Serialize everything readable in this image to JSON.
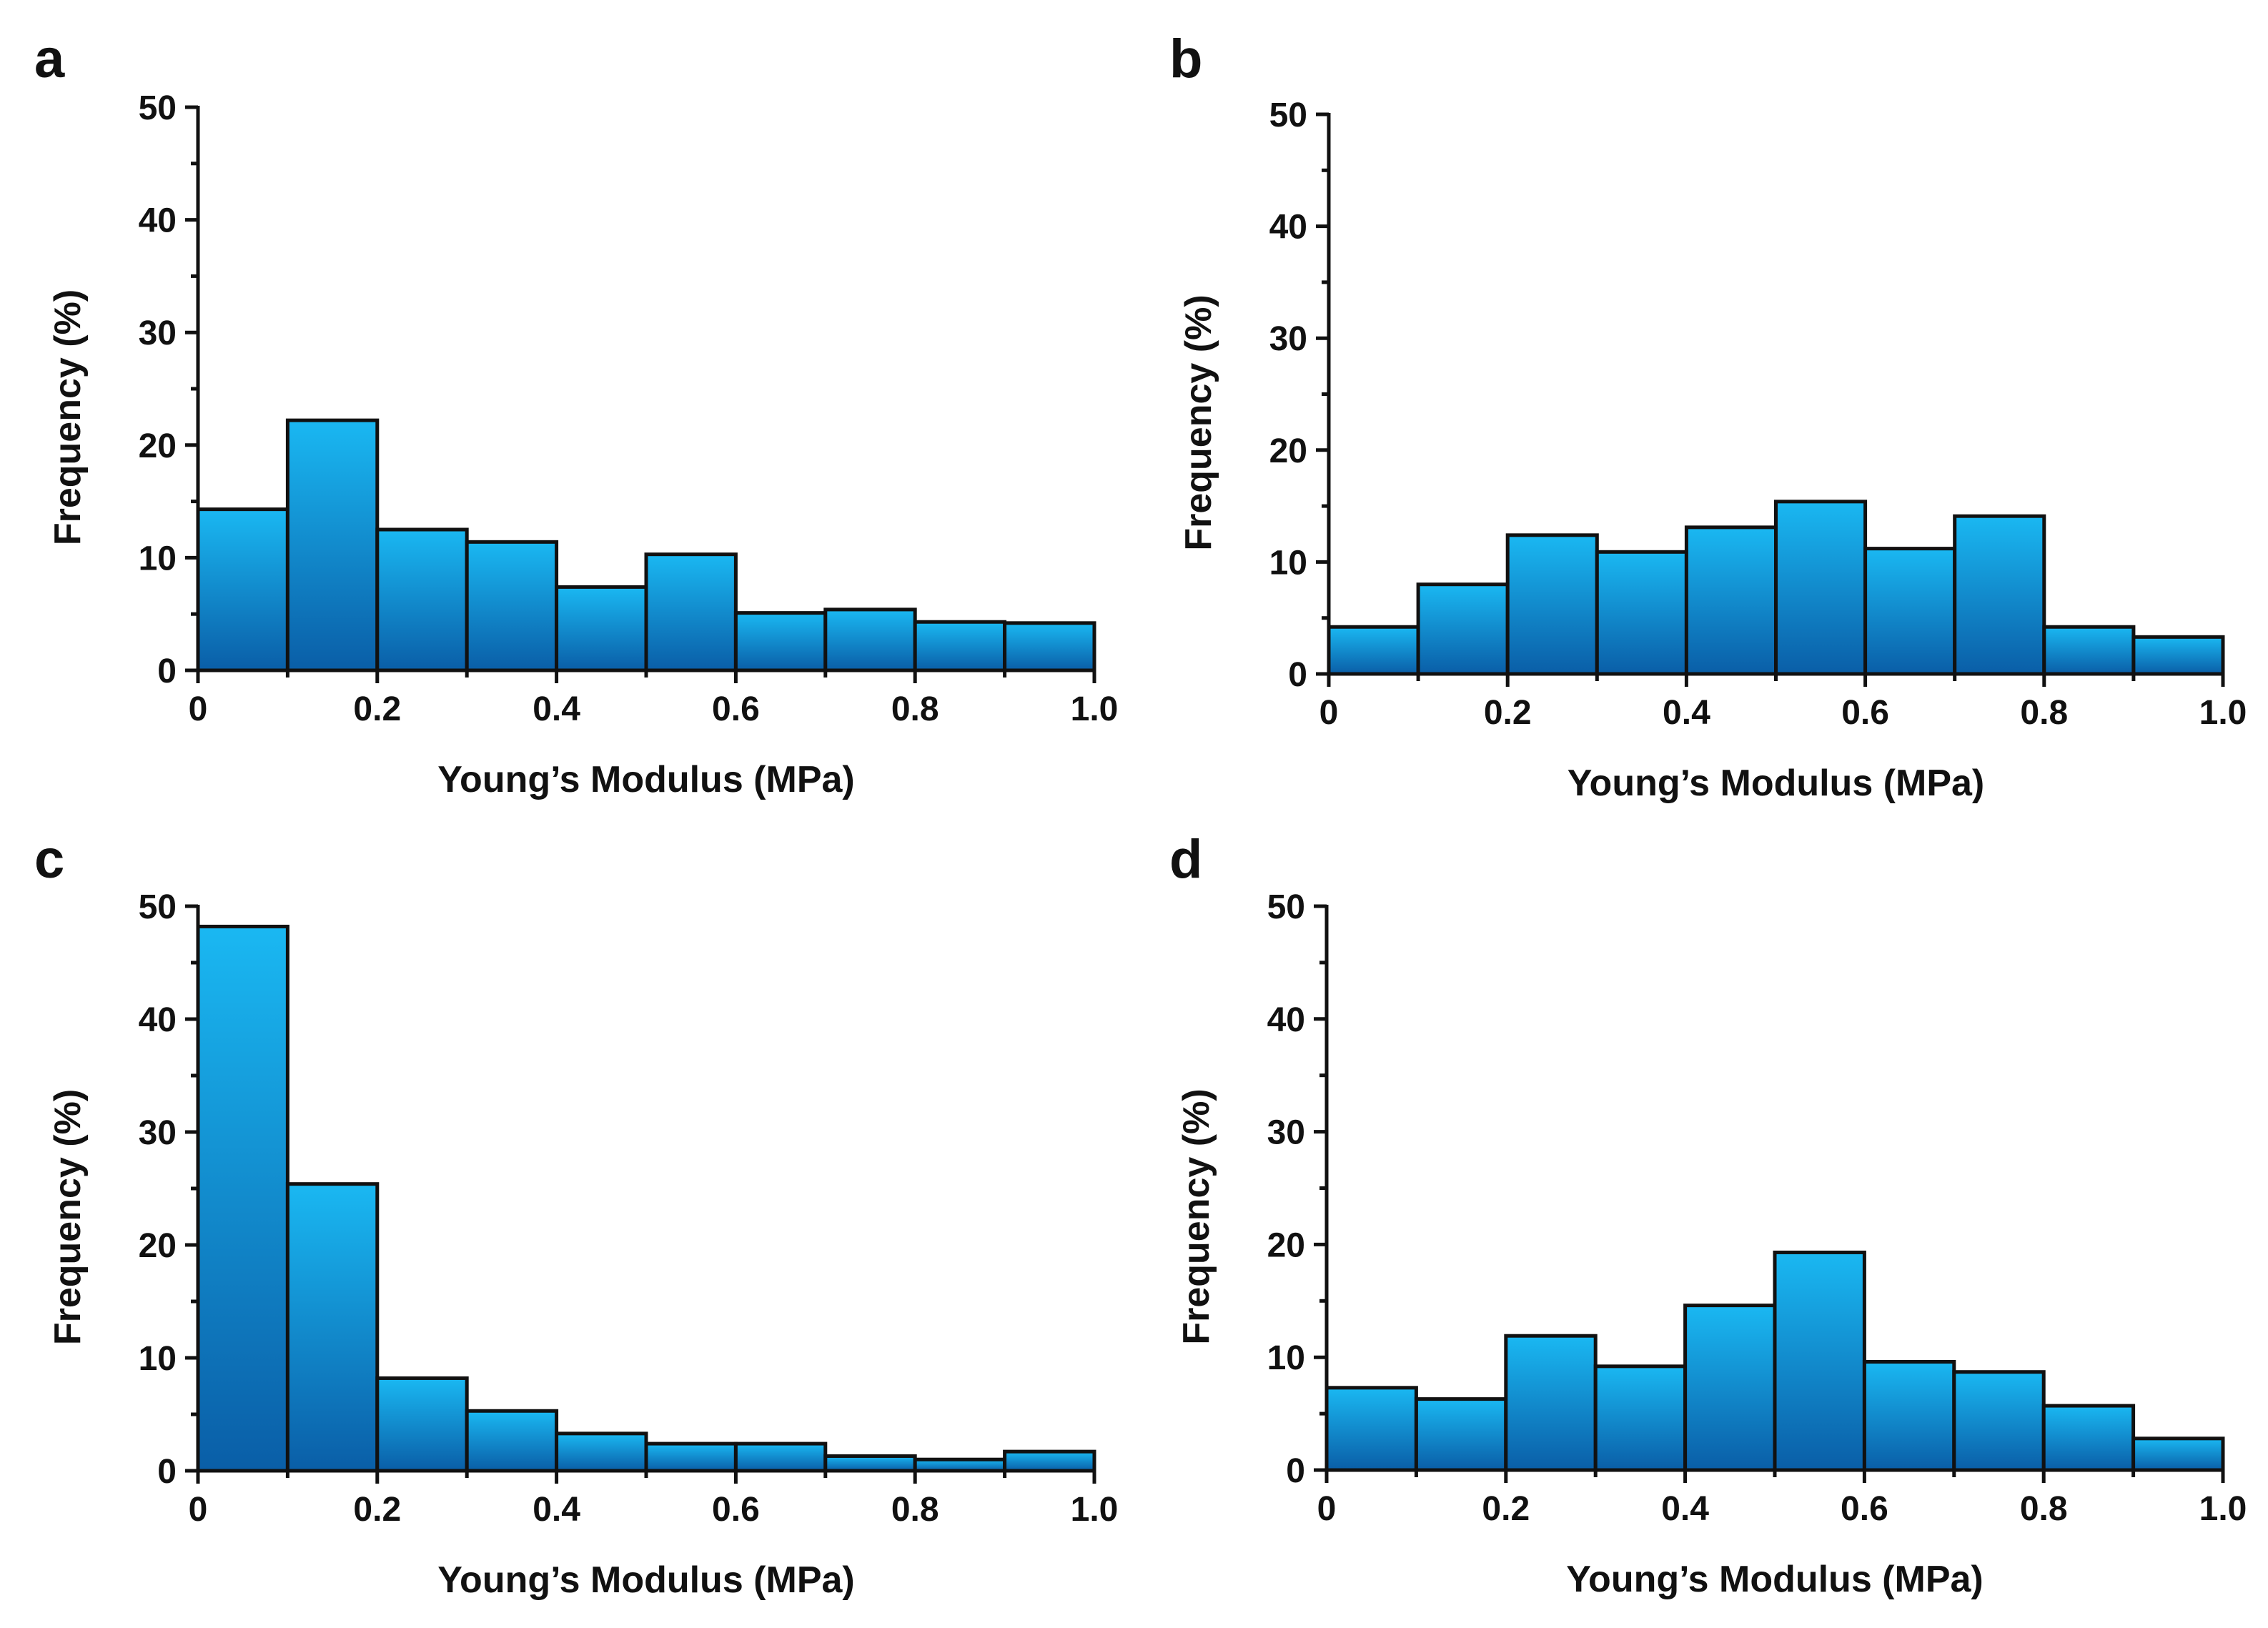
{
  "colors": {
    "bar_top": "#1ab8f2",
    "bar_bottom": "#0a5ea7",
    "outline": "#111111"
  },
  "chart_data": [
    {
      "panel": "a",
      "type": "bar",
      "xlabel": "Young’s Modulus (MPa)",
      "ylabel": "Frequency (%)",
      "xlim": [
        0,
        1.0
      ],
      "ylim": [
        0,
        50
      ],
      "xticks": [
        "0",
        "0.2",
        "0.4",
        "0.6",
        "0.8",
        "1.0"
      ],
      "yticks": [
        "0",
        "10",
        "20",
        "30",
        "40",
        "50"
      ],
      "bin_width": 0.1,
      "bin_starts": [
        0,
        0.1,
        0.2,
        0.3,
        0.4,
        0.5,
        0.6,
        0.7,
        0.8,
        0.9
      ],
      "values": [
        14.3,
        22.2,
        12.5,
        11.4,
        7.4,
        10.3,
        5.1,
        5.4,
        4.3,
        4.2
      ]
    },
    {
      "panel": "b",
      "type": "bar",
      "xlabel": "Young’s Modulus (MPa)",
      "ylabel": "Frequency (%)",
      "xlim": [
        0,
        1.0
      ],
      "ylim": [
        0,
        50
      ],
      "xticks": [
        "0",
        "0.2",
        "0.4",
        "0.6",
        "0.8",
        "1.0"
      ],
      "yticks": [
        "0",
        "10",
        "20",
        "30",
        "40",
        "50"
      ],
      "bin_width": 0.1,
      "bin_starts": [
        0,
        0.1,
        0.2,
        0.3,
        0.4,
        0.5,
        0.6,
        0.7,
        0.8,
        0.9
      ],
      "values": [
        4.2,
        8.0,
        12.4,
        10.9,
        13.1,
        15.4,
        11.2,
        14.1,
        4.2,
        3.3
      ]
    },
    {
      "panel": "c",
      "type": "bar",
      "xlabel": "Young’s Modulus (MPa)",
      "ylabel": "Frequency (%)",
      "xlim": [
        0,
        1.0
      ],
      "ylim": [
        0,
        50
      ],
      "xticks": [
        "0",
        "0.2",
        "0.4",
        "0.6",
        "0.8",
        "1.0"
      ],
      "yticks": [
        "0",
        "10",
        "20",
        "30",
        "40",
        "50"
      ],
      "bin_width": 0.1,
      "bin_starts": [
        0,
        0.1,
        0.2,
        0.3,
        0.4,
        0.5,
        0.6,
        0.7,
        0.8,
        0.9
      ],
      "values": [
        48.2,
        25.4,
        8.2,
        5.3,
        3.3,
        2.4,
        2.4,
        1.3,
        1.0,
        1.7
      ]
    },
    {
      "panel": "d",
      "type": "bar",
      "xlabel": "Young’s Modulus (MPa)",
      "ylabel": "Frequency (%)",
      "xlim": [
        0,
        1.0
      ],
      "ylim": [
        0,
        50
      ],
      "xticks": [
        "0",
        "0.2",
        "0.4",
        "0.6",
        "0.8",
        "1.0"
      ],
      "yticks": [
        "0",
        "10",
        "20",
        "30",
        "40",
        "50"
      ],
      "bin_width": 0.1,
      "bin_starts": [
        0,
        0.1,
        0.2,
        0.3,
        0.4,
        0.5,
        0.6,
        0.7,
        0.8,
        0.9
      ],
      "values": [
        7.3,
        6.3,
        11.9,
        9.2,
        14.6,
        19.3,
        9.6,
        8.7,
        5.7,
        2.8
      ]
    }
  ]
}
